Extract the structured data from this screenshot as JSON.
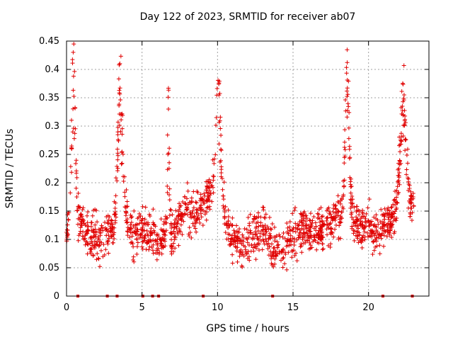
{
  "chart_data": {
    "type": "scatter",
    "title": "Day 122 of 2023, SRMTID for receiver ab07",
    "xlabel": "GPS time / hours",
    "ylabel": "SRMTID / TECUs",
    "xlim": [
      0,
      24
    ],
    "ylim": [
      0,
      0.45
    ],
    "xticks": [
      0,
      5,
      10,
      15,
      20
    ],
    "xtick_labels": [
      "0",
      "5",
      "10",
      "15",
      "20"
    ],
    "yticks": [
      0,
      0.05,
      0.1,
      0.15,
      0.2,
      0.25,
      0.3,
      0.35,
      0.4,
      0.45
    ],
    "ytick_labels": [
      "0",
      "0.05",
      "0.1",
      "0.15",
      "0.2",
      "0.25",
      "0.3",
      "0.35",
      "0.4",
      "0.45"
    ],
    "grid": true,
    "marker": "+",
    "color": "#e00000",
    "series": [
      {
        "name": "SRMTID",
        "trend": {
          "x": [
            0,
            0.5,
            1,
            1.5,
            2,
            2.5,
            3,
            3.5,
            4,
            4.5,
            5,
            5.5,
            6,
            6.5,
            7,
            7.5,
            8,
            8.5,
            9,
            9.5,
            10,
            10.5,
            11,
            11.5,
            12,
            12.5,
            13,
            13.5,
            14,
            14.5,
            15,
            15.5,
            16,
            16.5,
            17,
            17.5,
            18,
            18.5,
            19,
            19.5,
            20,
            20.5,
            21,
            21.5,
            22,
            22.5,
            23
          ],
          "y": [
            0.12,
            0.14,
            0.13,
            0.11,
            0.1,
            0.11,
            0.12,
            0.15,
            0.14,
            0.1,
            0.12,
            0.11,
            0.1,
            0.12,
            0.11,
            0.13,
            0.15,
            0.14,
            0.16,
            0.18,
            0.19,
            0.13,
            0.1,
            0.09,
            0.1,
            0.11,
            0.12,
            0.1,
            0.08,
            0.09,
            0.11,
            0.12,
            0.12,
            0.11,
            0.12,
            0.13,
            0.14,
            0.16,
            0.13,
            0.12,
            0.13,
            0.11,
            0.12,
            0.14,
            0.16,
            0.17,
            0.16
          ]
        },
        "peaks": [
          {
            "x": 0.45,
            "y": 0.445,
            "width": 0.25
          },
          {
            "x": 3.55,
            "y": 0.42,
            "width": 0.3
          },
          {
            "x": 6.75,
            "y": 0.36,
            "width": 0.12
          },
          {
            "x": 10.05,
            "y": 0.39,
            "width": 0.35
          },
          {
            "x": 18.6,
            "y": 0.41,
            "width": 0.28
          },
          {
            "x": 22.3,
            "y": 0.375,
            "width": 0.4
          }
        ],
        "zero_points_x": [
          0.75,
          2.7,
          3.35,
          5.05,
          5.7,
          6.1,
          9.05,
          13.65,
          20.95,
          22.9
        ]
      }
    ],
    "x_end": 23
  }
}
